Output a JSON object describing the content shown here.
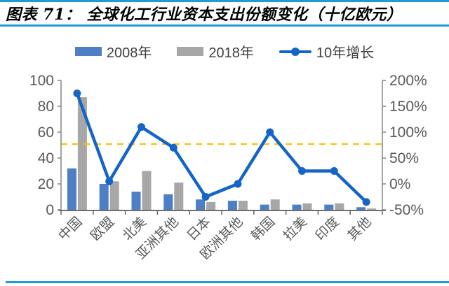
{
  "header": {
    "title": "图表 71：  全球化工行业资本支出份额变化（十亿欧元）"
  },
  "colors": {
    "accent_rule": "#1E9CD8",
    "bar_2008": "#4E7FC4",
    "bar_2018": "#A7A7A7",
    "line": "#1565C8",
    "reference_dash": "#FFC000",
    "axis_line": "#8C8C8C",
    "x_axis_line": "#6E6E6E",
    "axis_text": "#595959",
    "title_text": "#000000",
    "legend_text": "#3F3F3F"
  },
  "chart_data": {
    "type": "bar",
    "subtype": "grouped bars + line on secondary axis",
    "title": "全球化工行业资本支出份额变化（十亿欧元）",
    "categories": [
      "中国",
      "欧盟",
      "北美",
      "亚洲其他",
      "日本",
      "欧洲其他",
      "韩国",
      "拉美",
      "印度",
      "其他"
    ],
    "series": [
      {
        "name": "2008年",
        "type": "bar",
        "axis": "left",
        "values": [
          32,
          20,
          14,
          12,
          8,
          7,
          4,
          4,
          4,
          2
        ]
      },
      {
        "name": "2018年",
        "type": "bar",
        "axis": "left",
        "values": [
          87,
          22,
          30,
          21,
          6,
          7,
          8,
          5,
          5,
          1
        ]
      },
      {
        "name": "10年增长",
        "type": "line",
        "axis": "right",
        "unit": "%",
        "values": [
          175,
          5,
          110,
          70,
          -25,
          0,
          100,
          25,
          25,
          -35
        ]
      }
    ],
    "left_axis": {
      "min": 0,
      "max": 100,
      "ticks": [
        0,
        20,
        40,
        60,
        80,
        100
      ]
    },
    "right_axis": {
      "min": -50,
      "max": 200,
      "ticks": [
        "-50%",
        "0%",
        "50%",
        "100%",
        "150%",
        "200%"
      ]
    },
    "reference_line": {
      "value": 77,
      "unit": "%",
      "style": "dashed"
    },
    "legend_position": "top",
    "grid": "off"
  }
}
